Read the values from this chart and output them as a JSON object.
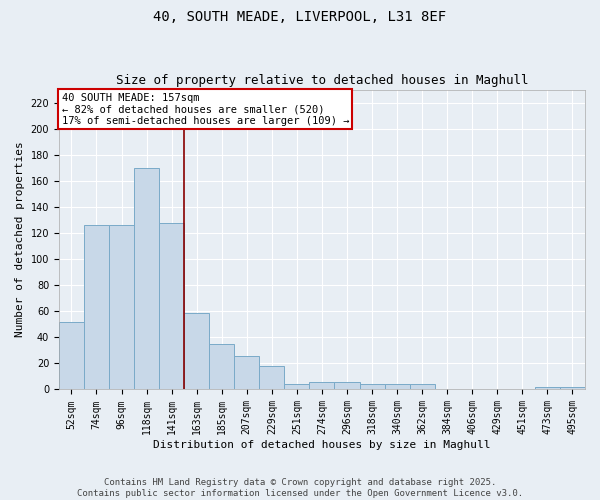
{
  "title1": "40, SOUTH MEADE, LIVERPOOL, L31 8EF",
  "title2": "Size of property relative to detached houses in Maghull",
  "xlabel": "Distribution of detached houses by size in Maghull",
  "ylabel": "Number of detached properties",
  "annotation_line1": "40 SOUTH MEADE: 157sqm",
  "annotation_line2": "← 82% of detached houses are smaller (520)",
  "annotation_line3": "17% of semi-detached houses are larger (109) →",
  "categories": [
    "52sqm",
    "74sqm",
    "96sqm",
    "118sqm",
    "141sqm",
    "163sqm",
    "185sqm",
    "207sqm",
    "229sqm",
    "251sqm",
    "274sqm",
    "296sqm",
    "318sqm",
    "340sqm",
    "362sqm",
    "384sqm",
    "406sqm",
    "429sqm",
    "451sqm",
    "473sqm",
    "495sqm"
  ],
  "values": [
    52,
    126,
    126,
    170,
    128,
    59,
    35,
    26,
    18,
    4,
    6,
    6,
    4,
    4,
    4,
    0,
    0,
    0,
    0,
    2,
    2
  ],
  "bar_color": "#c8d8e8",
  "bar_edgecolor": "#7aaac8",
  "vline_color": "#880000",
  "vline_x_index": 5,
  "ylim": [
    0,
    230
  ],
  "yticks": [
    0,
    20,
    40,
    60,
    80,
    100,
    120,
    140,
    160,
    180,
    200,
    220
  ],
  "background_color": "#e8eef4",
  "grid_color": "#ffffff",
  "annotation_box_edgecolor": "#cc0000",
  "annotation_box_facecolor": "#ffffff",
  "footer_line1": "Contains HM Land Registry data © Crown copyright and database right 2025.",
  "footer_line2": "Contains public sector information licensed under the Open Government Licence v3.0.",
  "title_fontsize": 10,
  "subtitle_fontsize": 9,
  "axis_label_fontsize": 8,
  "tick_fontsize": 7,
  "annotation_fontsize": 7.5,
  "footer_fontsize": 6.5
}
